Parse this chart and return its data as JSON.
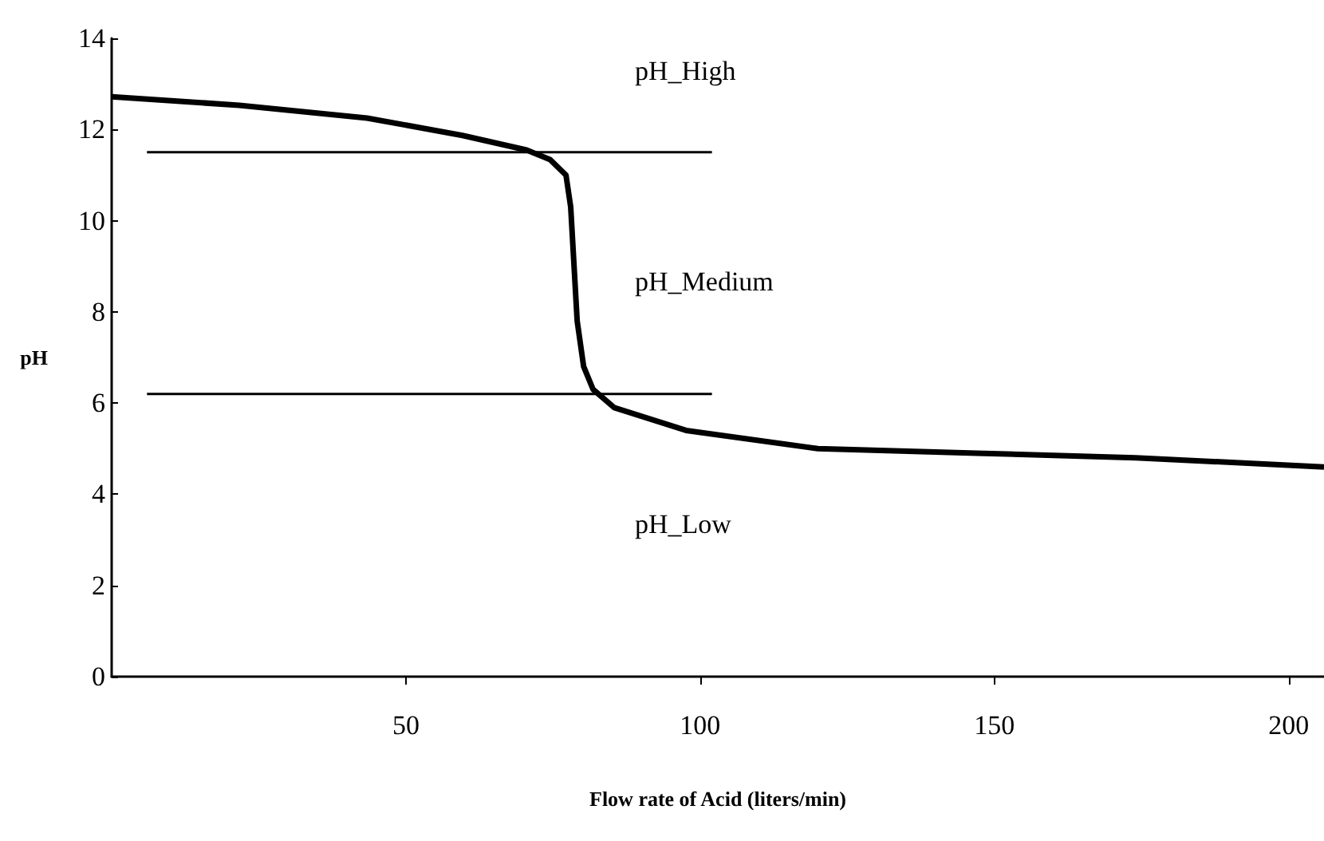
{
  "chart_data": {
    "type": "line",
    "xlabel": "Flow rate of Acid (liters/min)",
    "ylabel": "pH",
    "xlim": [
      0,
      206
    ],
    "ylim": [
      0,
      14
    ],
    "xticks": [
      50,
      100,
      150,
      200
    ],
    "yticks": [
      0,
      2,
      4,
      6,
      8,
      10,
      12,
      14
    ],
    "grid": false,
    "marker": "none",
    "line_style": "solid",
    "series": [
      {
        "color": "#000000",
        "x": [
          0,
          21.7,
          43.4,
          59.6,
          70.5,
          74.5,
          77.2,
          78.0,
          79.1,
          80.2,
          81.8,
          85.4,
          97.6,
          120,
          147,
          174,
          206
        ],
        "values": [
          12.72,
          12.53,
          12.25,
          11.87,
          11.55,
          11.34,
          11.0,
          10.3,
          7.8,
          6.8,
          6.3,
          5.9,
          5.4,
          5.0,
          4.9,
          4.8,
          4.6
        ]
      },
      {
        "color": "#000000",
        "x": [
          6,
          102
        ],
        "values": [
          11.5,
          11.5
        ]
      },
      {
        "color": "#000000",
        "x": [
          6,
          102
        ],
        "values": [
          6.2,
          6.2
        ]
      }
    ],
    "annotations": [
      "pH_High",
      "pH_Medium",
      "pH_Low"
    ]
  }
}
